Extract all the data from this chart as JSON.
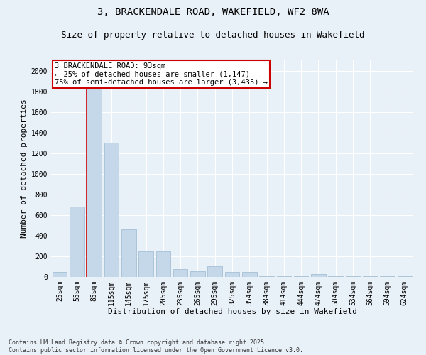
{
  "title": "3, BRACKENDALE ROAD, WAKEFIELD, WF2 8WA",
  "subtitle": "Size of property relative to detached houses in Wakefield",
  "xlabel": "Distribution of detached houses by size in Wakefield",
  "ylabel": "Number of detached properties",
  "categories": [
    "25sqm",
    "55sqm",
    "85sqm",
    "115sqm",
    "145sqm",
    "175sqm",
    "205sqm",
    "235sqm",
    "265sqm",
    "295sqm",
    "325sqm",
    "354sqm",
    "384sqm",
    "414sqm",
    "444sqm",
    "474sqm",
    "504sqm",
    "534sqm",
    "564sqm",
    "594sqm",
    "624sqm"
  ],
  "values": [
    50,
    680,
    1830,
    1300,
    460,
    250,
    250,
    75,
    55,
    100,
    45,
    50,
    5,
    5,
    5,
    30,
    5,
    5,
    5,
    5,
    5
  ],
  "bar_color": "#c5d8ea",
  "bar_edge_color": "#9cb8d0",
  "vline_color": "#cc0000",
  "annotation_text": "3 BRACKENDALE ROAD: 93sqm\n← 25% of detached houses are smaller (1,147)\n75% of semi-detached houses are larger (3,435) →",
  "annotation_box_color": "#ffffff",
  "annotation_box_edge": "#cc0000",
  "ylim": [
    0,
    2100
  ],
  "yticks": [
    0,
    200,
    400,
    600,
    800,
    1000,
    1200,
    1400,
    1600,
    1800,
    2000
  ],
  "background_color": "#e8f0f8",
  "grid_color": "#ffffff",
  "footer_line1": "Contains HM Land Registry data © Crown copyright and database right 2025.",
  "footer_line2": "Contains public sector information licensed under the Open Government Licence v3.0.",
  "title_fontsize": 10,
  "subtitle_fontsize": 9,
  "axis_label_fontsize": 8,
  "tick_fontsize": 7,
  "annotation_fontsize": 7.5,
  "footer_fontsize": 6
}
